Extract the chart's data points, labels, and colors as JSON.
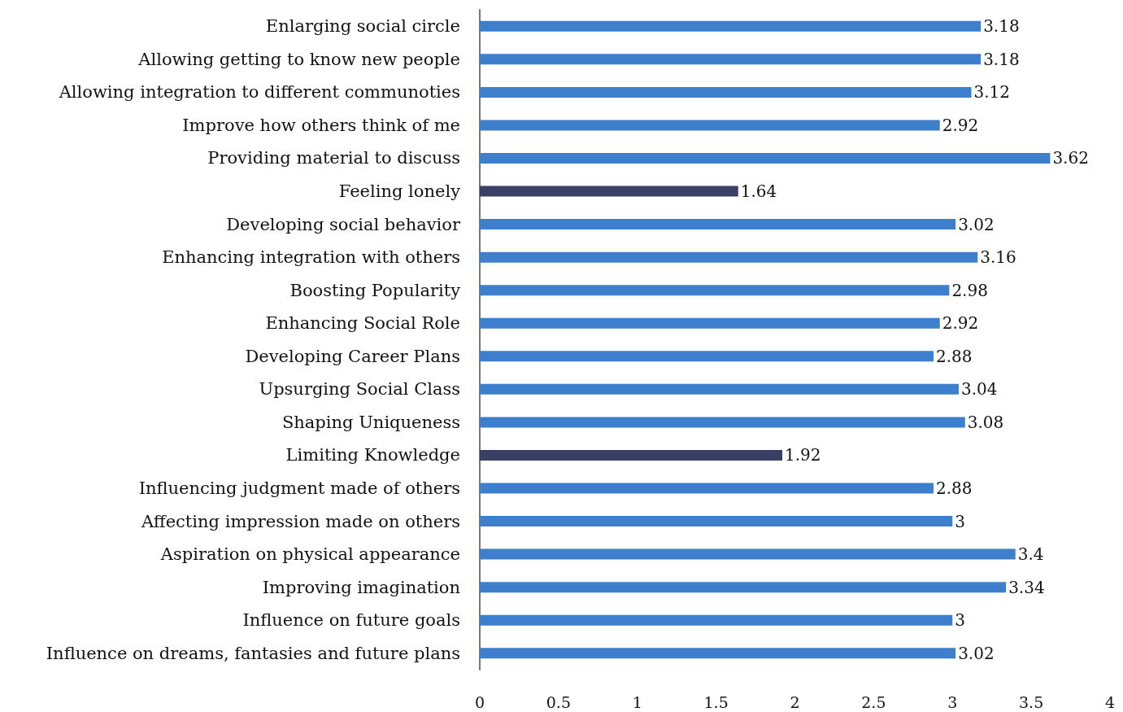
{
  "chart_data": {
    "type": "bar",
    "orientation": "horizontal",
    "categories": [
      "Enlarging social circle",
      "Allowing getting to know new people",
      "Allowing integration to different communoties",
      "Improve how others think of me",
      "Providing material to discuss",
      "Feeling lonely",
      "Developing social behavior",
      "Enhancing integration with others",
      "Boosting Popularity",
      "Enhancing Social Role",
      "Developing Career Plans",
      "Upsurging Social Class",
      "Shaping Uniqueness",
      "Limiting Knowledge",
      "Influencing judgment made of others",
      "Affecting impression made on others",
      "Aspiration on physical appearance",
      "Improving imagination",
      "Influence on future goals",
      "Influence on dreams, fantasies and future plans"
    ],
    "values": [
      3.18,
      3.18,
      3.12,
      2.92,
      3.62,
      1.64,
      3.02,
      3.16,
      2.98,
      2.92,
      2.88,
      3.04,
      3.08,
      1.92,
      2.88,
      3,
      3.4,
      3.34,
      3,
      3.02
    ],
    "colors": [
      "#3d7fcc",
      "#3d7fcc",
      "#3d7fcc",
      "#3d7fcc",
      "#3d7fcc",
      "#3a3f66",
      "#3d7fcc",
      "#3d7fcc",
      "#3d7fcc",
      "#3d7fcc",
      "#3d7fcc",
      "#3d7fcc",
      "#3d7fcc",
      "#3a3f66",
      "#3d7fcc",
      "#3d7fcc",
      "#3d7fcc",
      "#3d7fcc",
      "#3d7fcc",
      "#3d7fcc"
    ],
    "xlim": [
      0,
      4
    ],
    "xticks": [
      0,
      0.5,
      1,
      1.5,
      2,
      2.5,
      3,
      3.5,
      4
    ],
    "data_labels": true,
    "grid": false
  }
}
